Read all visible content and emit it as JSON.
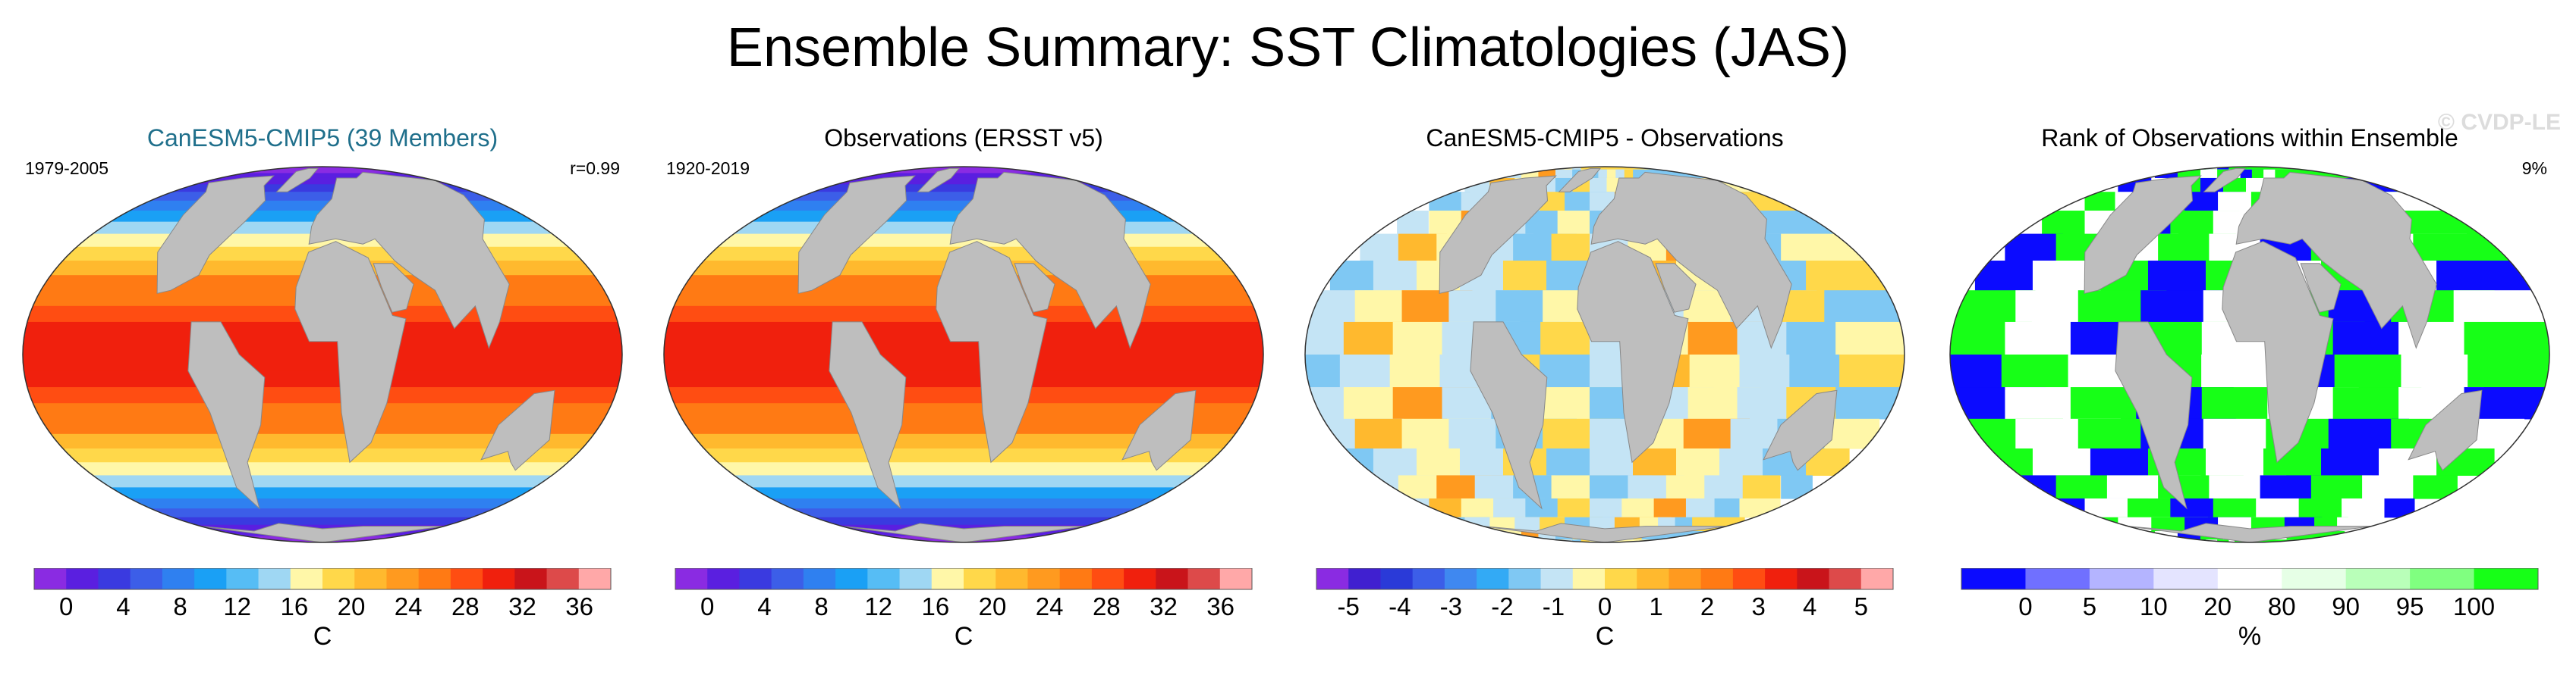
{
  "title": "Ensemble Summary: SST Climatologies (JAS)",
  "watermark": "© CVDP-LE",
  "colors": {
    "land": "#bebebe",
    "sst_scale": [
      "#8a2be2",
      "#5a1fe0",
      "#3a3ae0",
      "#3c5ee8",
      "#2f80f0",
      "#1aa0f5",
      "#56bdf5",
      "#9fd7f3",
      "#fff7a8",
      "#ffd84a",
      "#ffb92e",
      "#ff9a1f",
      "#ff7a14",
      "#ff4d12",
      "#f0200d",
      "#c9141a",
      "#dd4a4a",
      "#ffa8a8"
    ],
    "diff_scale": [
      "#8a2be2",
      "#4020d0",
      "#2a3ad8",
      "#3c5ee8",
      "#3f88f0",
      "#33aaf5",
      "#7fc8f3",
      "#c4e4f5",
      "#fff7a8",
      "#ffd84a",
      "#ffb92e",
      "#ff9a1f",
      "#ff7a14",
      "#ff4d12",
      "#f0200d",
      "#c9141a",
      "#dd4a4a",
      "#ffa8a8"
    ],
    "rank_scale": [
      "#0b0bff",
      "#7070ff",
      "#b4b4ff",
      "#e4e4ff",
      "#ffffff",
      "#e6ffe6",
      "#b9ffb9",
      "#80ff80",
      "#17ff17"
    ]
  },
  "panels": [
    {
      "title": "CanESM5-CMIP5 (39 Members)",
      "corner_left": "1979-2005",
      "corner_right": "r=0.99",
      "units": "C",
      "scale": "sst",
      "ticks": [
        "0",
        "4",
        "8",
        "12",
        "16",
        "20",
        "24",
        "28",
        "32",
        "36"
      ]
    },
    {
      "title": "Observations (ERSST v5)",
      "corner_left": "1920-2019",
      "corner_right": "",
      "units": "C",
      "scale": "sst",
      "ticks": [
        "0",
        "4",
        "8",
        "12",
        "16",
        "20",
        "24",
        "28",
        "32",
        "36"
      ]
    },
    {
      "title": "CanESM5-CMIP5 - Observations",
      "corner_left": "",
      "corner_right": "",
      "units": "C",
      "scale": "diff",
      "ticks": [
        "-5",
        "-4",
        "-3",
        "-2",
        "-1",
        "0",
        "1",
        "2",
        "3",
        "4",
        "5"
      ]
    },
    {
      "title": "Rank of Observations within Ensemble",
      "corner_left": "",
      "corner_right": "9%",
      "units": "%",
      "scale": "rank",
      "ticks": [
        "0",
        "5",
        "10",
        "20",
        "80",
        "90",
        "95",
        "100"
      ]
    }
  ]
}
